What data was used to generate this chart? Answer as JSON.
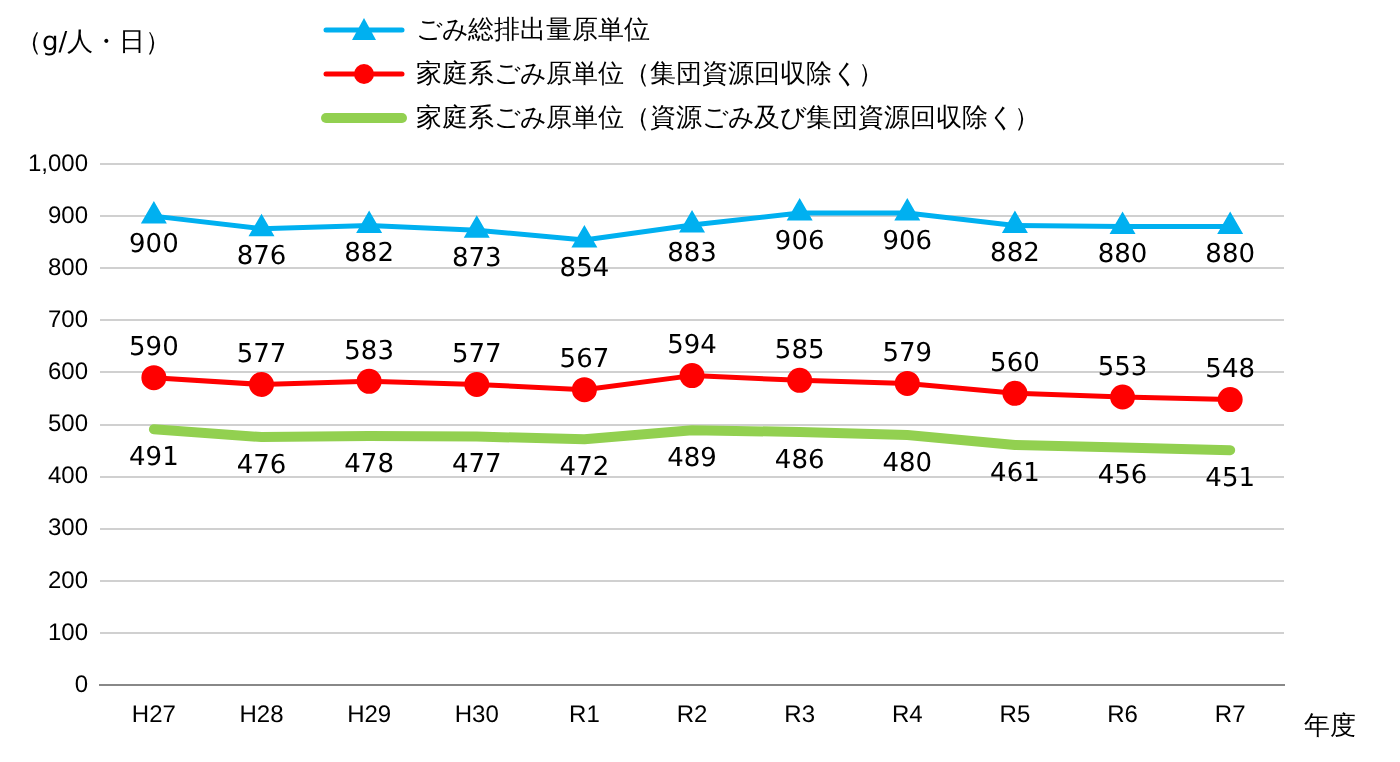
{
  "chart_data": {
    "type": "line",
    "ylabel": "（g/人・日）",
    "xlabel": "年度",
    "categories": [
      "H27",
      "H28",
      "H29",
      "H30",
      "R1",
      "R2",
      "R3",
      "R4",
      "R5",
      "R6",
      "R7"
    ],
    "series": [
      {
        "name": "ごみ総排出量原単位",
        "color": "#00b0f0",
        "marker": "triangle",
        "values": [
          900,
          876,
          882,
          873,
          854,
          883,
          906,
          906,
          882,
          880,
          880
        ]
      },
      {
        "name": "家庭系ごみ原単位（集団資源回収除く）",
        "color": "#ff0000",
        "marker": "circle",
        "values": [
          590,
          577,
          583,
          577,
          567,
          594,
          585,
          579,
          560,
          553,
          548
        ]
      },
      {
        "name": "家庭系ごみ原単位（資源ごみ及び集団資源回収除く）",
        "color": "#92d050",
        "marker": "none",
        "values": [
          491,
          476,
          478,
          477,
          472,
          489,
          486,
          480,
          461,
          456,
          451
        ]
      }
    ],
    "ylim": [
      0,
      1000
    ],
    "yticks": [
      0,
      100,
      200,
      300,
      400,
      500,
      600,
      700,
      800,
      900,
      {
        "value": 1000,
        "label": "1,000"
      }
    ],
    "grid": "y",
    "legend": "top",
    "data_labels": true
  }
}
